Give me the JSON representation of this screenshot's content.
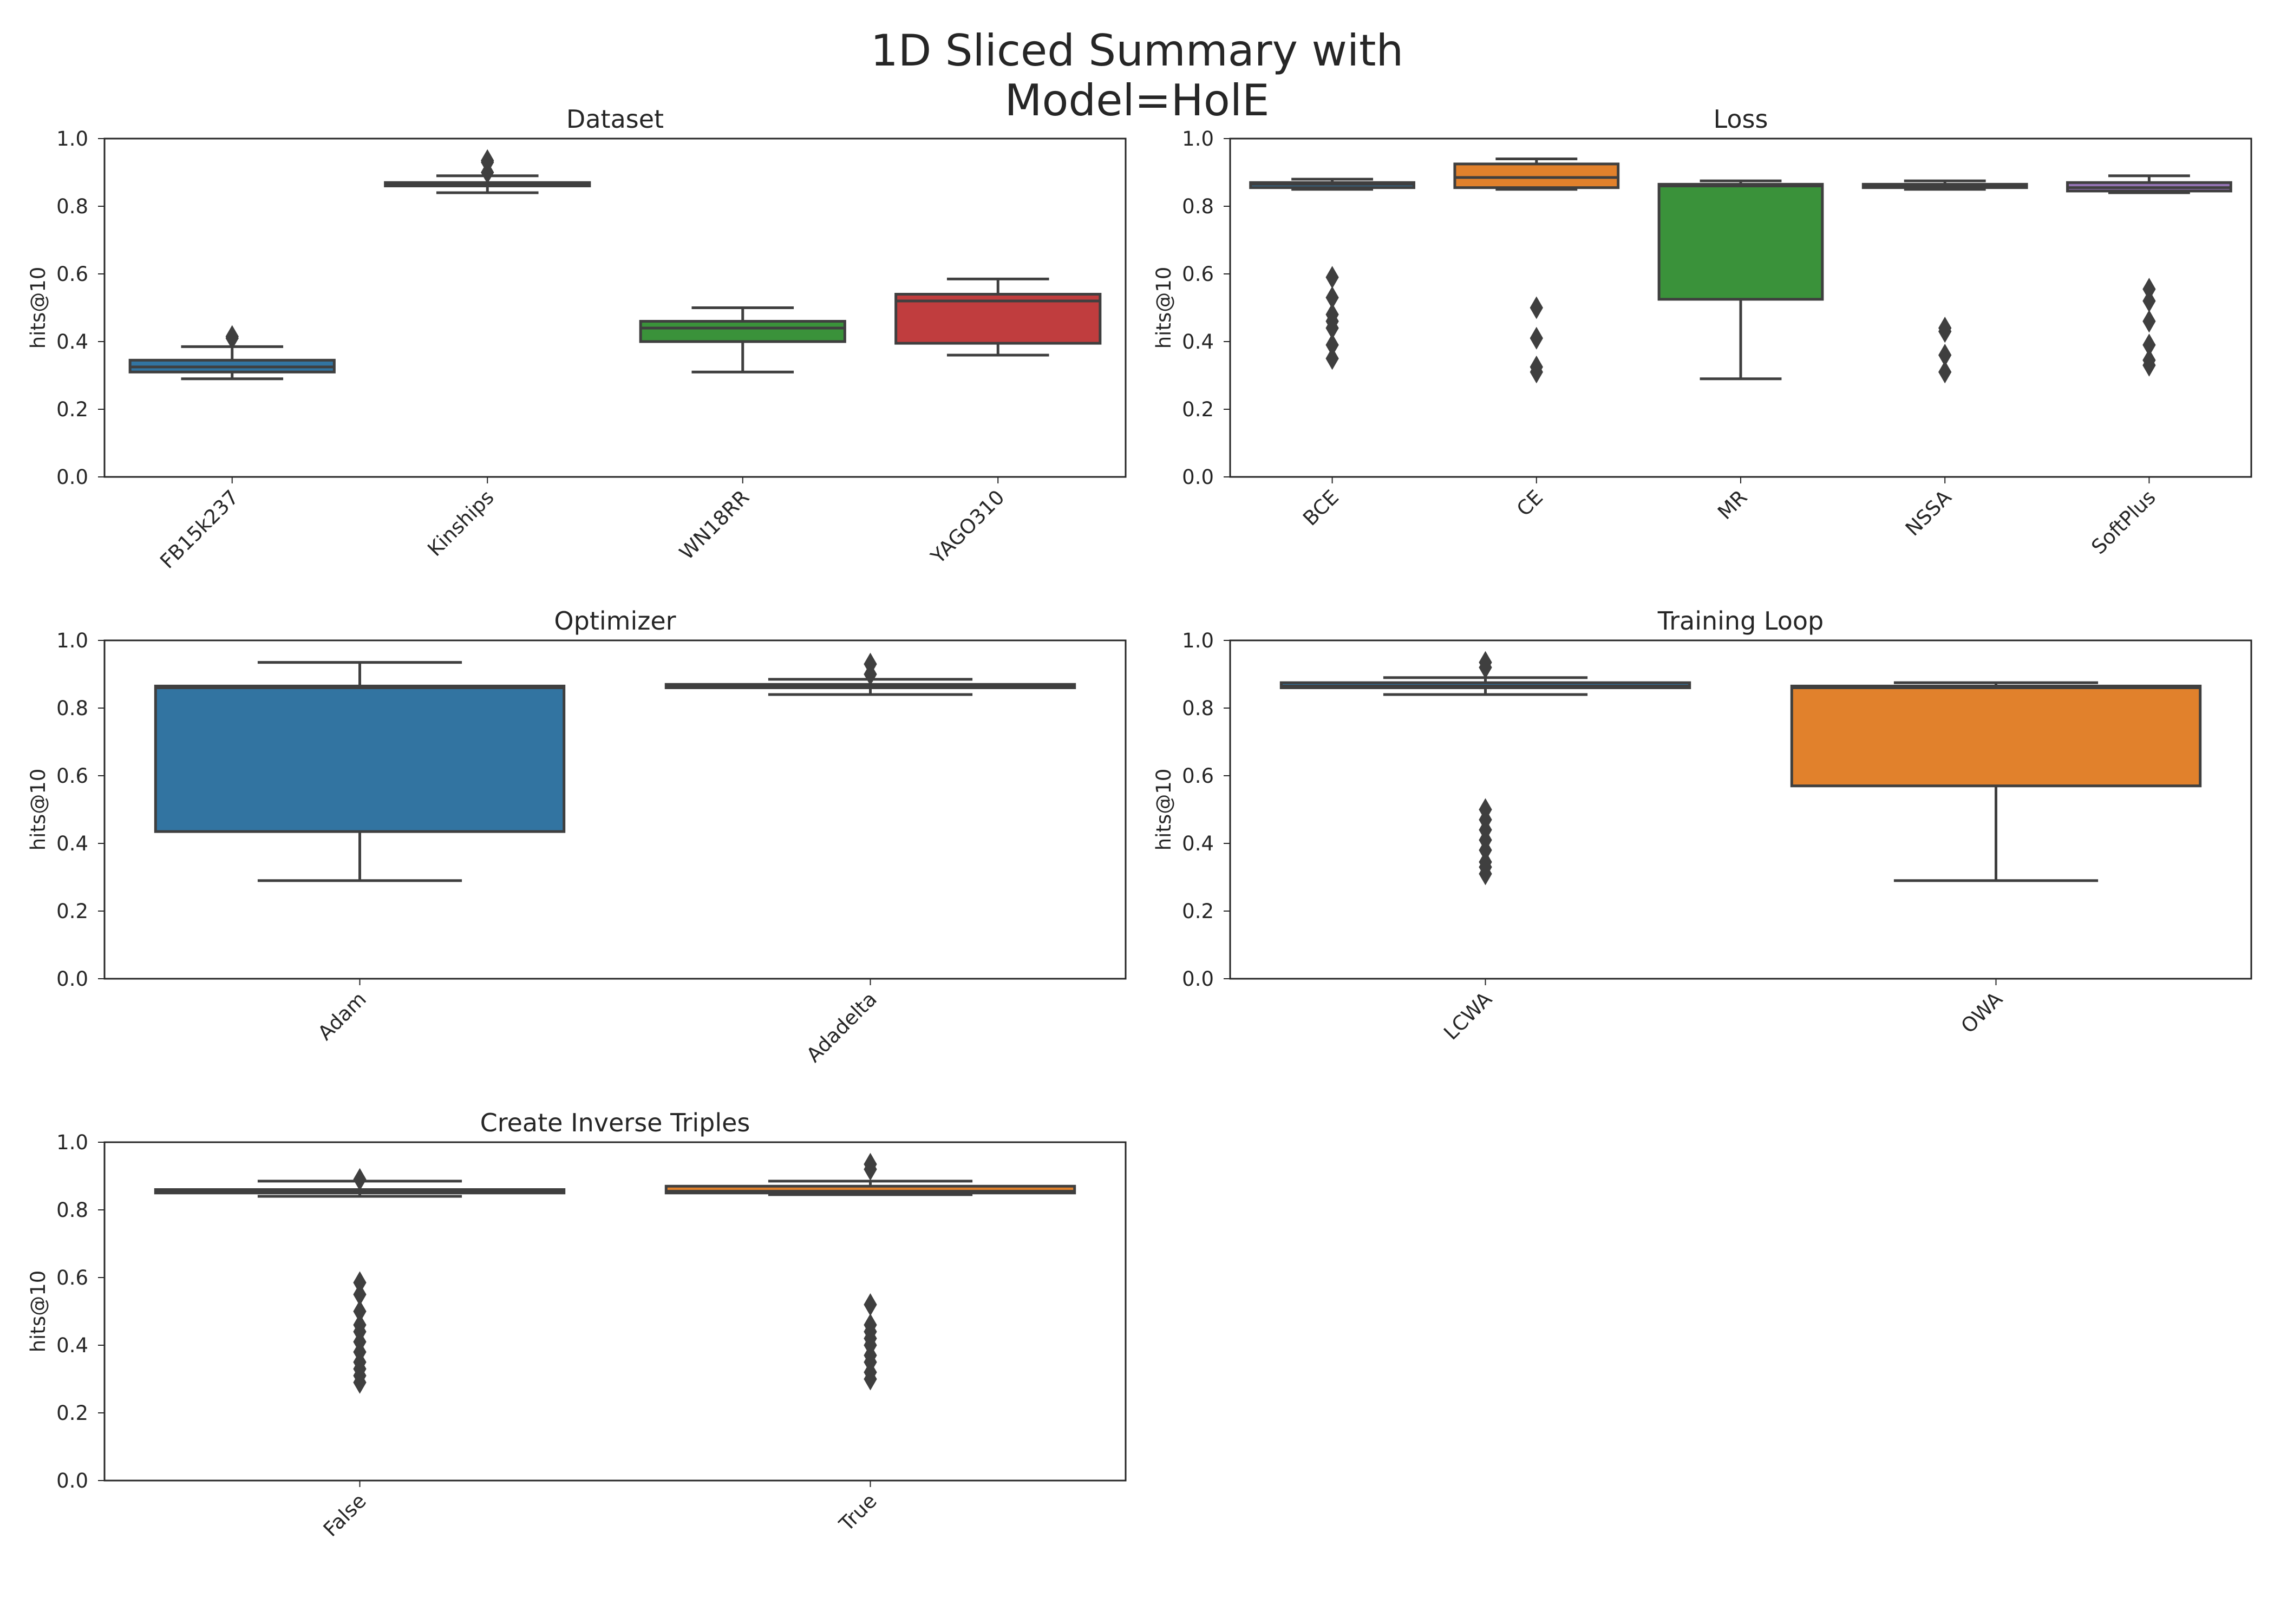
{
  "figure": {
    "title_line1": "1D Sliced Summary with",
    "title_line2": "Model=HolE"
  },
  "chart_data": [
    {
      "type": "box",
      "title": "Dataset",
      "xlabel": "",
      "ylabel": "hits@10",
      "ylim": [
        0,
        1
      ],
      "yticks": [
        "0.0",
        "0.2",
        "0.4",
        "0.6",
        "0.8",
        "1.0"
      ],
      "categories": [
        "FB15k237",
        "Kinships",
        "WN18RR",
        "YAGO310"
      ],
      "boxes": [
        {
          "category": "FB15k237",
          "color": "#3274a1",
          "whisker_low": 0.29,
          "q1": 0.31,
          "median": 0.325,
          "q3": 0.345,
          "whisker_high": 0.385,
          "outliers": [
            0.41,
            0.415
          ]
        },
        {
          "category": "Kinships",
          "color": "#3274a1",
          "whisker_low": 0.84,
          "q1": 0.86,
          "median": 0.865,
          "q3": 0.87,
          "whisker_high": 0.89,
          "outliers": [
            0.9,
            0.93,
            0.935
          ]
        },
        {
          "category": "WN18RR",
          "color": "#3a923a",
          "whisker_low": 0.31,
          "q1": 0.4,
          "median": 0.44,
          "q3": 0.46,
          "whisker_high": 0.5,
          "outliers": []
        },
        {
          "category": "YAGO310",
          "color": "#c03d3e",
          "whisker_low": 0.36,
          "q1": 0.395,
          "median": 0.52,
          "q3": 0.54,
          "whisker_high": 0.585,
          "outliers": []
        }
      ]
    },
    {
      "type": "box",
      "title": "Loss",
      "xlabel": "",
      "ylabel": "hits@10",
      "ylim": [
        0,
        1
      ],
      "yticks": [
        "0.0",
        "0.2",
        "0.4",
        "0.6",
        "0.8",
        "1.0"
      ],
      "categories": [
        "BCE",
        "CE",
        "MR",
        "NSSA",
        "SoftPlus"
      ],
      "boxes": [
        {
          "category": "BCE",
          "color": "#3274a1",
          "whisker_low": 0.85,
          "q1": 0.855,
          "median": 0.865,
          "q3": 0.87,
          "whisker_high": 0.88,
          "outliers": [
            0.35,
            0.39,
            0.44,
            0.46,
            0.48,
            0.53,
            0.59
          ]
        },
        {
          "category": "CE",
          "color": "#e1812c",
          "whisker_low": 0.85,
          "q1": 0.855,
          "median": 0.885,
          "q3": 0.925,
          "whisker_high": 0.94,
          "outliers": [
            0.31,
            0.325,
            0.41,
            0.5
          ]
        },
        {
          "category": "MR",
          "color": "#3a923a",
          "whisker_low": 0.29,
          "q1": 0.525,
          "median": 0.86,
          "q3": 0.865,
          "whisker_high": 0.875,
          "outliers": []
        },
        {
          "category": "NSSA",
          "color": "#3274a1",
          "whisker_low": 0.85,
          "q1": 0.855,
          "median": 0.86,
          "q3": 0.865,
          "whisker_high": 0.875,
          "outliers": [
            0.31,
            0.36,
            0.43,
            0.44
          ]
        },
        {
          "category": "SoftPlus",
          "color": "#9372b2",
          "whisker_low": 0.84,
          "q1": 0.845,
          "median": 0.855,
          "q3": 0.87,
          "whisker_high": 0.89,
          "outliers": [
            0.33,
            0.345,
            0.39,
            0.46,
            0.52,
            0.555
          ]
        }
      ]
    },
    {
      "type": "box",
      "title": "Optimizer",
      "xlabel": "",
      "ylabel": "hits@10",
      "ylim": [
        0,
        1
      ],
      "yticks": [
        "0.0",
        "0.2",
        "0.4",
        "0.6",
        "0.8",
        "1.0"
      ],
      "categories": [
        "Adam",
        "Adadelta"
      ],
      "boxes": [
        {
          "category": "Adam",
          "color": "#3274a1",
          "whisker_low": 0.29,
          "q1": 0.435,
          "median": 0.86,
          "q3": 0.865,
          "whisker_high": 0.935,
          "outliers": []
        },
        {
          "category": "Adadelta",
          "color": "#e1812c",
          "whisker_low": 0.84,
          "q1": 0.86,
          "median": 0.865,
          "q3": 0.87,
          "whisker_high": 0.885,
          "outliers": [
            0.9,
            0.93
          ]
        }
      ]
    },
    {
      "type": "box",
      "title": "Training Loop",
      "xlabel": "",
      "ylabel": "hits@10",
      "ylim": [
        0,
        1
      ],
      "yticks": [
        "0.0",
        "0.2",
        "0.4",
        "0.6",
        "0.8",
        "1.0"
      ],
      "categories": [
        "LCWA",
        "OWA"
      ],
      "boxes": [
        {
          "category": "LCWA",
          "color": "#3274a1",
          "whisker_low": 0.84,
          "q1": 0.86,
          "median": 0.865,
          "q3": 0.875,
          "whisker_high": 0.89,
          "outliers": [
            0.31,
            0.33,
            0.345,
            0.38,
            0.41,
            0.44,
            0.47,
            0.5,
            0.92,
            0.935
          ]
        },
        {
          "category": "OWA",
          "color": "#e1812c",
          "whisker_low": 0.29,
          "q1": 0.57,
          "median": 0.86,
          "q3": 0.865,
          "whisker_high": 0.875,
          "outliers": []
        }
      ]
    },
    {
      "type": "box",
      "title": "Create Inverse Triples",
      "xlabel": "",
      "ylabel": "hits@10",
      "ylim": [
        0,
        1
      ],
      "yticks": [
        "0.0",
        "0.2",
        "0.4",
        "0.6",
        "0.8",
        "1.0"
      ],
      "categories": [
        "False",
        "True"
      ],
      "boxes": [
        {
          "category": "False",
          "color": "#3274a1",
          "whisker_low": 0.84,
          "q1": 0.85,
          "median": 0.855,
          "q3": 0.86,
          "whisker_high": 0.885,
          "outliers": [
            0.29,
            0.31,
            0.33,
            0.35,
            0.38,
            0.41,
            0.44,
            0.46,
            0.5,
            0.55,
            0.585,
            0.89
          ]
        },
        {
          "category": "True",
          "color": "#e1812c",
          "whisker_low": 0.845,
          "q1": 0.85,
          "median": 0.855,
          "q3": 0.87,
          "whisker_high": 0.885,
          "outliers": [
            0.3,
            0.32,
            0.35,
            0.37,
            0.4,
            0.42,
            0.44,
            0.46,
            0.52,
            0.92,
            0.935
          ]
        }
      ]
    }
  ]
}
